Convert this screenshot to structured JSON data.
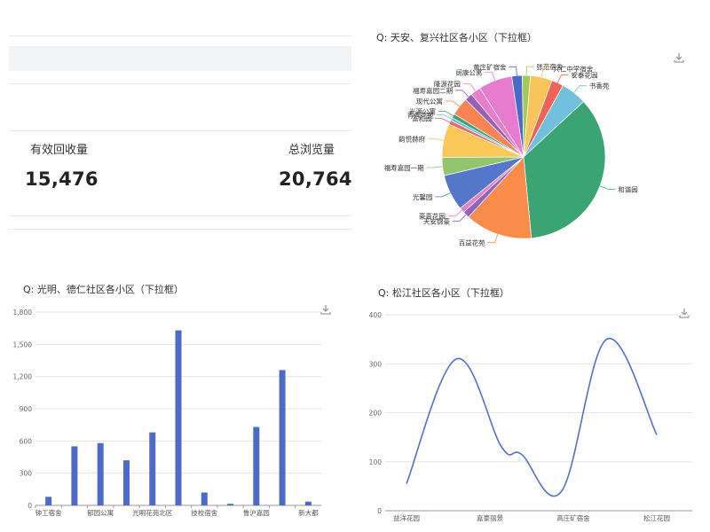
{
  "stats": {
    "items": [
      {
        "label": "有效回收量",
        "value": "15,476"
      },
      {
        "label": "总浏览量",
        "value": "20,764"
      }
    ]
  },
  "charts": {
    "pie_title": "Q:  天安、复兴社区各小区（下拉框）",
    "bar_title": "Q:  光明、德仁社区各小区（下拉框）",
    "line_title": "Q:  松江社区各小区（下拉框）",
    "download_icon": "download-icon"
  },
  "chart_data": [
    {
      "type": "pie",
      "title": "Q:  天安、复兴社区各小区（下拉框）",
      "slices": [
        {
          "name": "张范宿舍",
          "value": 1.6,
          "color": "#a4c85a"
        },
        {
          "name": "兴仁中学宿舍",
          "value": 4.2,
          "color": "#f8c55c"
        },
        {
          "name": "安泰花园",
          "value": 2.3,
          "color": "#ed6356"
        },
        {
          "name": "书香苑",
          "value": 5.0,
          "color": "#73bfde"
        },
        {
          "name": "和谐园",
          "value": 34.5,
          "color": "#3aa472"
        },
        {
          "name": "百益花苑",
          "value": 13.0,
          "color": "#f98b4b"
        },
        {
          "name": "天安锦豪",
          "value": 1.3,
          "color": "#9462bd"
        },
        {
          "name": "豪嘉花园",
          "value": 1.0,
          "color": "#e57fc6"
        },
        {
          "name": "光馨园",
          "value": 7.0,
          "color": "#5477c9"
        },
        {
          "name": "福寿嘉园一期",
          "value": 3.5,
          "color": "#93c56f"
        },
        {
          "name": "韵悦赫府",
          "value": 6.5,
          "color": "#fac858"
        },
        {
          "name": "富和园",
          "value": 0.8,
          "color": "#ee6666"
        },
        {
          "name": "青青花苑",
          "value": 0.6,
          "color": "#73c0de"
        },
        {
          "name": "光源公寓",
          "value": 0.8,
          "color": "#3ba272"
        },
        {
          "name": "现代公寓",
          "value": 3.5,
          "color": "#fc8452"
        },
        {
          "name": "福寿嘉园二期",
          "value": 1.5,
          "color": "#9a60b4"
        },
        {
          "name": "隆源花园",
          "value": 2.0,
          "color": "#ea7ccc"
        },
        {
          "name": "阔康公寓",
          "value": 6.5,
          "color": "#e97bce"
        },
        {
          "name": "黄庄矿宿舍",
          "value": 2.0,
          "color": "#4a6ac7"
        }
      ]
    },
    {
      "type": "bar",
      "title": "Q:  光明、德仁社区各小区（下拉框）",
      "categories": [
        "钟工宿舍",
        "",
        "郁园公寓",
        "",
        "光明花苑北区",
        "",
        "技校宿舍",
        "",
        "鲁沪嘉园",
        "",
        "新大都"
      ],
      "values": [
        80,
        550,
        580,
        420,
        680,
        1630,
        120,
        15,
        730,
        1260,
        35
      ],
      "ylim": [
        0,
        1800
      ],
      "yticks": [
        "0",
        "300",
        "600",
        "900",
        "1,200",
        "1,500",
        "1,800"
      ],
      "color": "#4e6ac8"
    },
    {
      "type": "line",
      "title": "Q:  松江社区各小区（下拉框）",
      "categories": [
        "益洋花园",
        "嘉豪丽景",
        "高庄矿宿舍",
        "松江花园"
      ],
      "x": [
        0,
        1,
        1.9,
        2.3,
        3.1,
        4,
        5
      ],
      "values": [
        55,
        310,
        130,
        115,
        40,
        350,
        155
      ],
      "ylim": [
        0,
        400
      ],
      "yticks": [
        "0",
        "100",
        "200",
        "300",
        "400"
      ],
      "color": "#5470c6"
    }
  ]
}
